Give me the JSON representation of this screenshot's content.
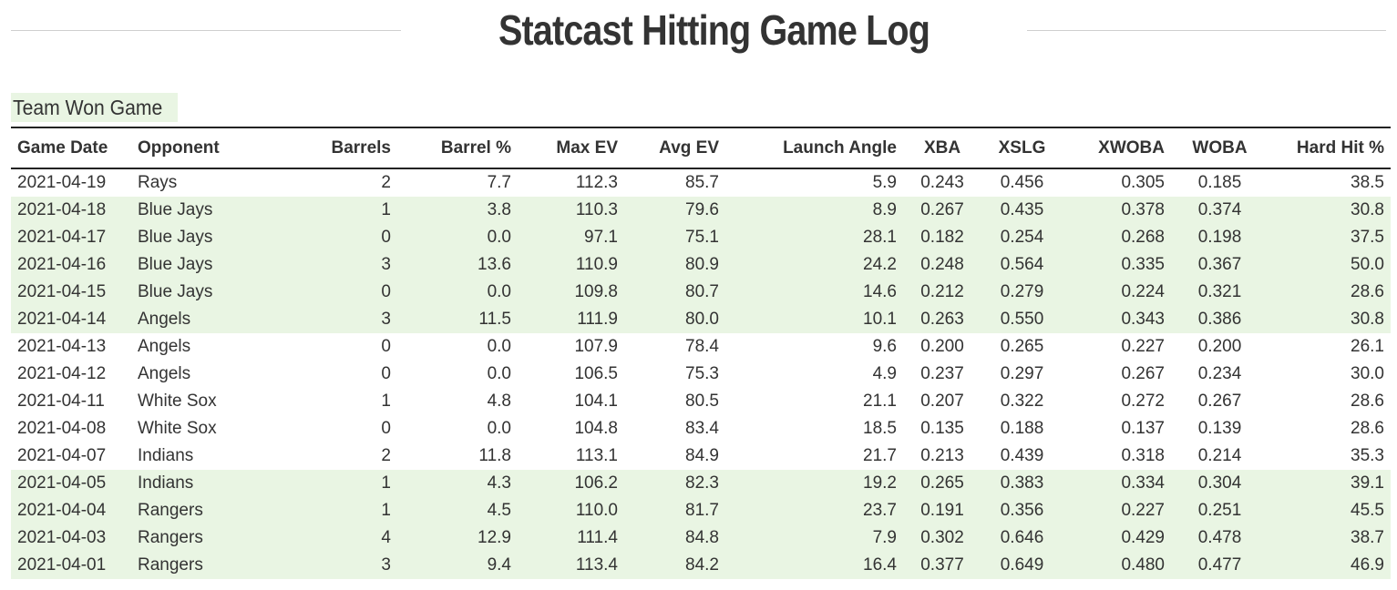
{
  "header": {
    "title": "Statcast Hitting Game Log"
  },
  "legend": {
    "label": "Team Won Game",
    "color": "#e9f5e3"
  },
  "table": {
    "columns": [
      "Game Date",
      "Opponent",
      "Barrels",
      "Barrel %",
      "Max EV",
      "Avg EV",
      "Launch Angle",
      "XBA",
      "XSLG",
      "XWOBA",
      "WOBA",
      "Hard Hit %"
    ],
    "rows": [
      {
        "won": false,
        "cells": [
          "2021-04-19",
          "Rays",
          "2",
          "7.7",
          "112.3",
          "85.7",
          "5.9",
          "0.243",
          "0.456",
          "0.305",
          "0.185",
          "38.5"
        ]
      },
      {
        "won": true,
        "cells": [
          "2021-04-18",
          "Blue Jays",
          "1",
          "3.8",
          "110.3",
          "79.6",
          "8.9",
          "0.267",
          "0.435",
          "0.378",
          "0.374",
          "30.8"
        ]
      },
      {
        "won": true,
        "cells": [
          "2021-04-17",
          "Blue Jays",
          "0",
          "0.0",
          "97.1",
          "75.1",
          "28.1",
          "0.182",
          "0.254",
          "0.268",
          "0.198",
          "37.5"
        ]
      },
      {
        "won": true,
        "cells": [
          "2021-04-16",
          "Blue Jays",
          "3",
          "13.6",
          "110.9",
          "80.9",
          "24.2",
          "0.248",
          "0.564",
          "0.335",
          "0.367",
          "50.0"
        ]
      },
      {
        "won": true,
        "cells": [
          "2021-04-15",
          "Blue Jays",
          "0",
          "0.0",
          "109.8",
          "80.7",
          "14.6",
          "0.212",
          "0.279",
          "0.224",
          "0.321",
          "28.6"
        ]
      },
      {
        "won": true,
        "cells": [
          "2021-04-14",
          "Angels",
          "3",
          "11.5",
          "111.9",
          "80.0",
          "10.1",
          "0.263",
          "0.550",
          "0.343",
          "0.386",
          "30.8"
        ]
      },
      {
        "won": false,
        "cells": [
          "2021-04-13",
          "Angels",
          "0",
          "0.0",
          "107.9",
          "78.4",
          "9.6",
          "0.200",
          "0.265",
          "0.227",
          "0.200",
          "26.1"
        ]
      },
      {
        "won": false,
        "cells": [
          "2021-04-12",
          "Angels",
          "0",
          "0.0",
          "106.5",
          "75.3",
          "4.9",
          "0.237",
          "0.297",
          "0.267",
          "0.234",
          "30.0"
        ]
      },
      {
        "won": false,
        "cells": [
          "2021-04-11",
          "White Sox",
          "1",
          "4.8",
          "104.1",
          "80.5",
          "21.1",
          "0.207",
          "0.322",
          "0.272",
          "0.267",
          "28.6"
        ]
      },
      {
        "won": false,
        "cells": [
          "2021-04-08",
          "White Sox",
          "0",
          "0.0",
          "104.8",
          "83.4",
          "18.5",
          "0.135",
          "0.188",
          "0.137",
          "0.139",
          "28.6"
        ]
      },
      {
        "won": false,
        "cells": [
          "2021-04-07",
          "Indians",
          "2",
          "11.8",
          "113.1",
          "84.9",
          "21.7",
          "0.213",
          "0.439",
          "0.318",
          "0.214",
          "35.3"
        ]
      },
      {
        "won": true,
        "cells": [
          "2021-04-05",
          "Indians",
          "1",
          "4.3",
          "106.2",
          "82.3",
          "19.2",
          "0.265",
          "0.383",
          "0.334",
          "0.304",
          "39.1"
        ]
      },
      {
        "won": true,
        "cells": [
          "2021-04-04",
          "Rangers",
          "1",
          "4.5",
          "110.0",
          "81.7",
          "23.7",
          "0.191",
          "0.356",
          "0.227",
          "0.251",
          "45.5"
        ]
      },
      {
        "won": true,
        "cells": [
          "2021-04-03",
          "Rangers",
          "4",
          "12.9",
          "111.4",
          "84.8",
          "7.9",
          "0.302",
          "0.646",
          "0.429",
          "0.478",
          "38.7"
        ]
      },
      {
        "won": true,
        "cells": [
          "2021-04-01",
          "Rangers",
          "3",
          "9.4",
          "113.4",
          "84.2",
          "16.4",
          "0.377",
          "0.649",
          "0.480",
          "0.477",
          "46.9"
        ]
      }
    ]
  }
}
